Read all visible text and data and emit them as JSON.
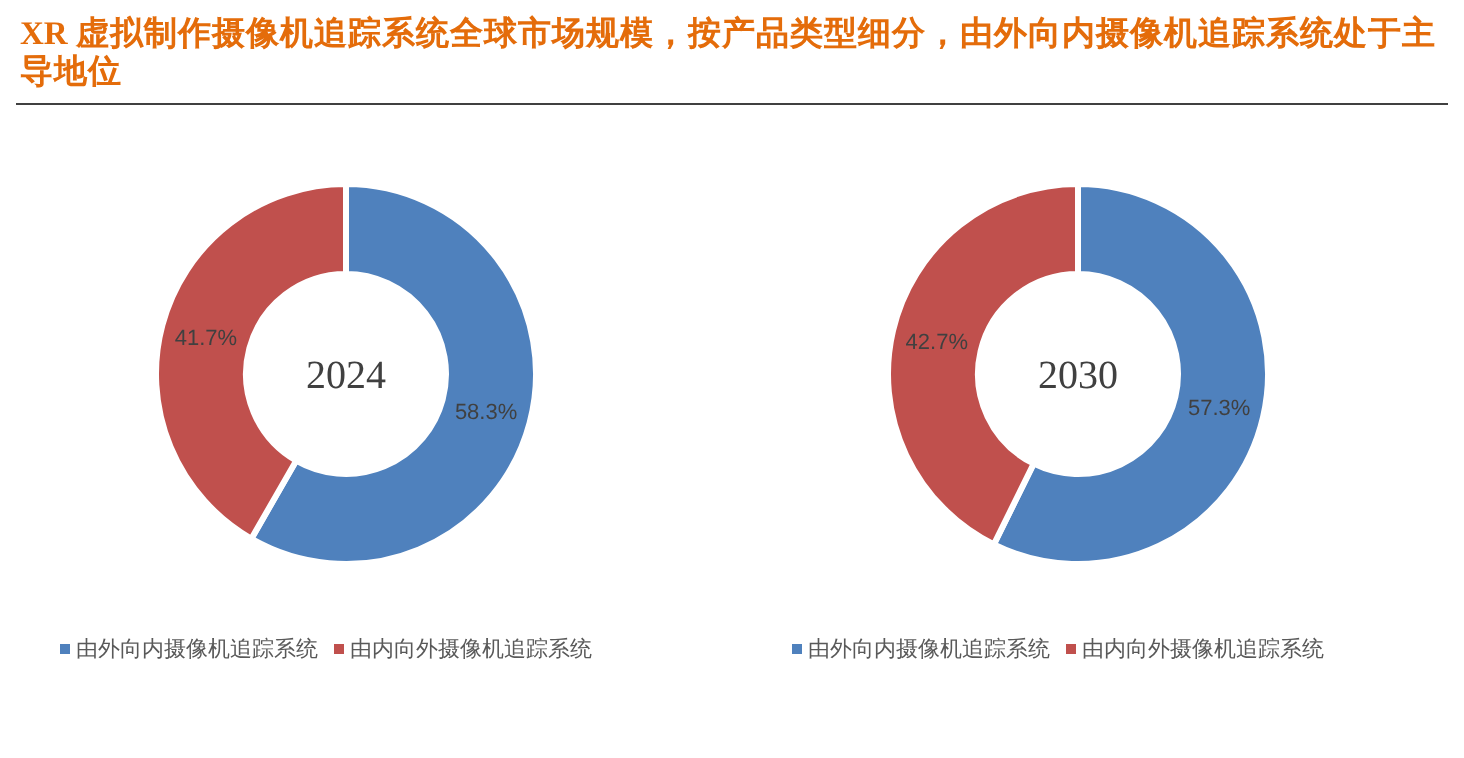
{
  "chart_data": [
    {
      "type": "donut",
      "title": "XR 虚拟制作摄像机追踪系统全球市场规模，按产品类型细分，由外向内摄像机追踪系统处于主导地位",
      "annotations": [
        "2024"
      ],
      "categories": [
        "由外向内摄像机追踪系统",
        "由内向外摄像机追踪系统"
      ],
      "values": [
        58.3,
        41.7
      ],
      "colors": [
        "#4f81bd",
        "#c0504d"
      ],
      "value_labels": [
        "58.3%",
        "41.7%"
      ],
      "legend": "bottom"
    },
    {
      "type": "donut",
      "annotations": [
        "2030"
      ],
      "categories": [
        "由外向内摄像机追踪系统",
        "由内向外摄像机追踪系统"
      ],
      "values": [
        57.3,
        42.7
      ],
      "colors": [
        "#4f81bd",
        "#c0504d"
      ],
      "value_labels": [
        "57.3%",
        "42.7%"
      ],
      "legend": "bottom"
    }
  ]
}
